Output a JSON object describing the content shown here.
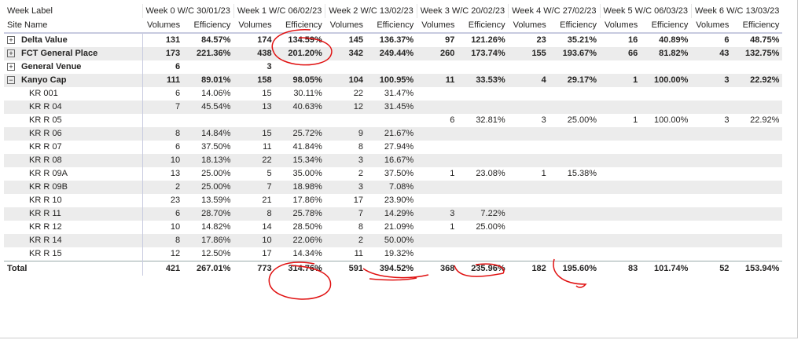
{
  "header": {
    "corner": "Week Label",
    "site_label": "Site Name",
    "weeks": [
      "Week 0 W/C 30/01/23",
      "Week 1 W/C 06/02/23",
      "Week 2 W/C 13/02/23",
      "Week 3 W/C 20/02/23",
      "Week 4 W/C 27/02/23",
      "Week 5 W/C 06/03/23",
      "Week 6 W/C 13/03/23"
    ],
    "measures": [
      "Volumes",
      "Efficiency"
    ]
  },
  "table": {
    "rows": [
      {
        "name": "Delta Value",
        "level": 0,
        "expanded": false,
        "cells": [
          131,
          "84.57%",
          174,
          "134.59%",
          145,
          "136.37%",
          97,
          "121.26%",
          23,
          "35.21%",
          16,
          "40.89%",
          6,
          "48.75%"
        ]
      },
      {
        "name": "FCT General Place",
        "level": 0,
        "expanded": false,
        "cells": [
          173,
          "221.36%",
          438,
          "201.20%",
          342,
          "249.44%",
          260,
          "173.74%",
          155,
          "193.67%",
          66,
          "81.82%",
          43,
          "132.75%"
        ]
      },
      {
        "name": "General Venue",
        "level": 0,
        "expanded": false,
        "cells": [
          6,
          null,
          3,
          null,
          null,
          null,
          null,
          null,
          null,
          null,
          null,
          null,
          null,
          null
        ]
      },
      {
        "name": "Kanyo Cap",
        "level": 0,
        "expanded": true,
        "cells": [
          111,
          "89.01%",
          158,
          "98.05%",
          104,
          "100.95%",
          11,
          "33.53%",
          4,
          "29.17%",
          1,
          "100.00%",
          3,
          "22.92%"
        ]
      },
      {
        "name": "KR 001",
        "level": 1,
        "cells": [
          6,
          "14.06%",
          15,
          "30.11%",
          22,
          "31.47%",
          null,
          null,
          null,
          null,
          null,
          null,
          null,
          null
        ]
      },
      {
        "name": "KR R 04",
        "level": 1,
        "cells": [
          7,
          "45.54%",
          13,
          "40.63%",
          12,
          "31.45%",
          null,
          null,
          null,
          null,
          null,
          null,
          null,
          null
        ]
      },
      {
        "name": "KR R 05",
        "level": 1,
        "cells": [
          null,
          null,
          null,
          null,
          null,
          null,
          6,
          "32.81%",
          3,
          "25.00%",
          1,
          "100.00%",
          3,
          "22.92%"
        ]
      },
      {
        "name": "KR R 06",
        "level": 1,
        "cells": [
          8,
          "14.84%",
          15,
          "25.72%",
          9,
          "21.67%",
          null,
          null,
          null,
          null,
          null,
          null,
          null,
          null
        ]
      },
      {
        "name": "KR R 07",
        "level": 1,
        "cells": [
          6,
          "37.50%",
          11,
          "41.84%",
          8,
          "27.94%",
          null,
          null,
          null,
          null,
          null,
          null,
          null,
          null
        ]
      },
      {
        "name": "KR R 08",
        "level": 1,
        "cells": [
          10,
          "18.13%",
          22,
          "15.34%",
          3,
          "16.67%",
          null,
          null,
          null,
          null,
          null,
          null,
          null,
          null
        ]
      },
      {
        "name": "KR R 09A",
        "level": 1,
        "cells": [
          13,
          "25.00%",
          5,
          "35.00%",
          2,
          "37.50%",
          1,
          "23.08%",
          1,
          "15.38%",
          null,
          null,
          null,
          null
        ]
      },
      {
        "name": "KR R 09B",
        "level": 1,
        "cells": [
          2,
          "25.00%",
          7,
          "18.98%",
          3,
          "7.08%",
          null,
          null,
          null,
          null,
          null,
          null,
          null,
          null
        ]
      },
      {
        "name": "KR R 10",
        "level": 1,
        "cells": [
          23,
          "13.59%",
          21,
          "17.86%",
          17,
          "23.90%",
          null,
          null,
          null,
          null,
          null,
          null,
          null,
          null
        ]
      },
      {
        "name": "KR R 11",
        "level": 1,
        "cells": [
          6,
          "28.70%",
          8,
          "25.78%",
          7,
          "14.29%",
          3,
          "7.22%",
          null,
          null,
          null,
          null,
          null,
          null
        ]
      },
      {
        "name": "KR R 12",
        "level": 1,
        "cells": [
          10,
          "14.82%",
          14,
          "28.50%",
          8,
          "21.09%",
          1,
          "25.00%",
          null,
          null,
          null,
          null,
          null,
          null
        ]
      },
      {
        "name": "KR R 14",
        "level": 1,
        "cells": [
          8,
          "17.86%",
          10,
          "22.06%",
          2,
          "50.00%",
          null,
          null,
          null,
          null,
          null,
          null,
          null,
          null
        ]
      },
      {
        "name": "KR R 15",
        "level": 1,
        "cells": [
          12,
          "12.50%",
          17,
          "14.34%",
          11,
          "19.32%",
          null,
          null,
          null,
          null,
          null,
          null,
          null,
          null
        ]
      }
    ],
    "total": {
      "name": "Total",
      "cells": [
        421,
        "267.01%",
        773,
        "314.76%",
        591,
        "394.52%",
        368,
        "235.96%",
        182,
        "195.60%",
        83,
        "101.74%",
        52,
        "153.94%"
      ]
    }
  }
}
